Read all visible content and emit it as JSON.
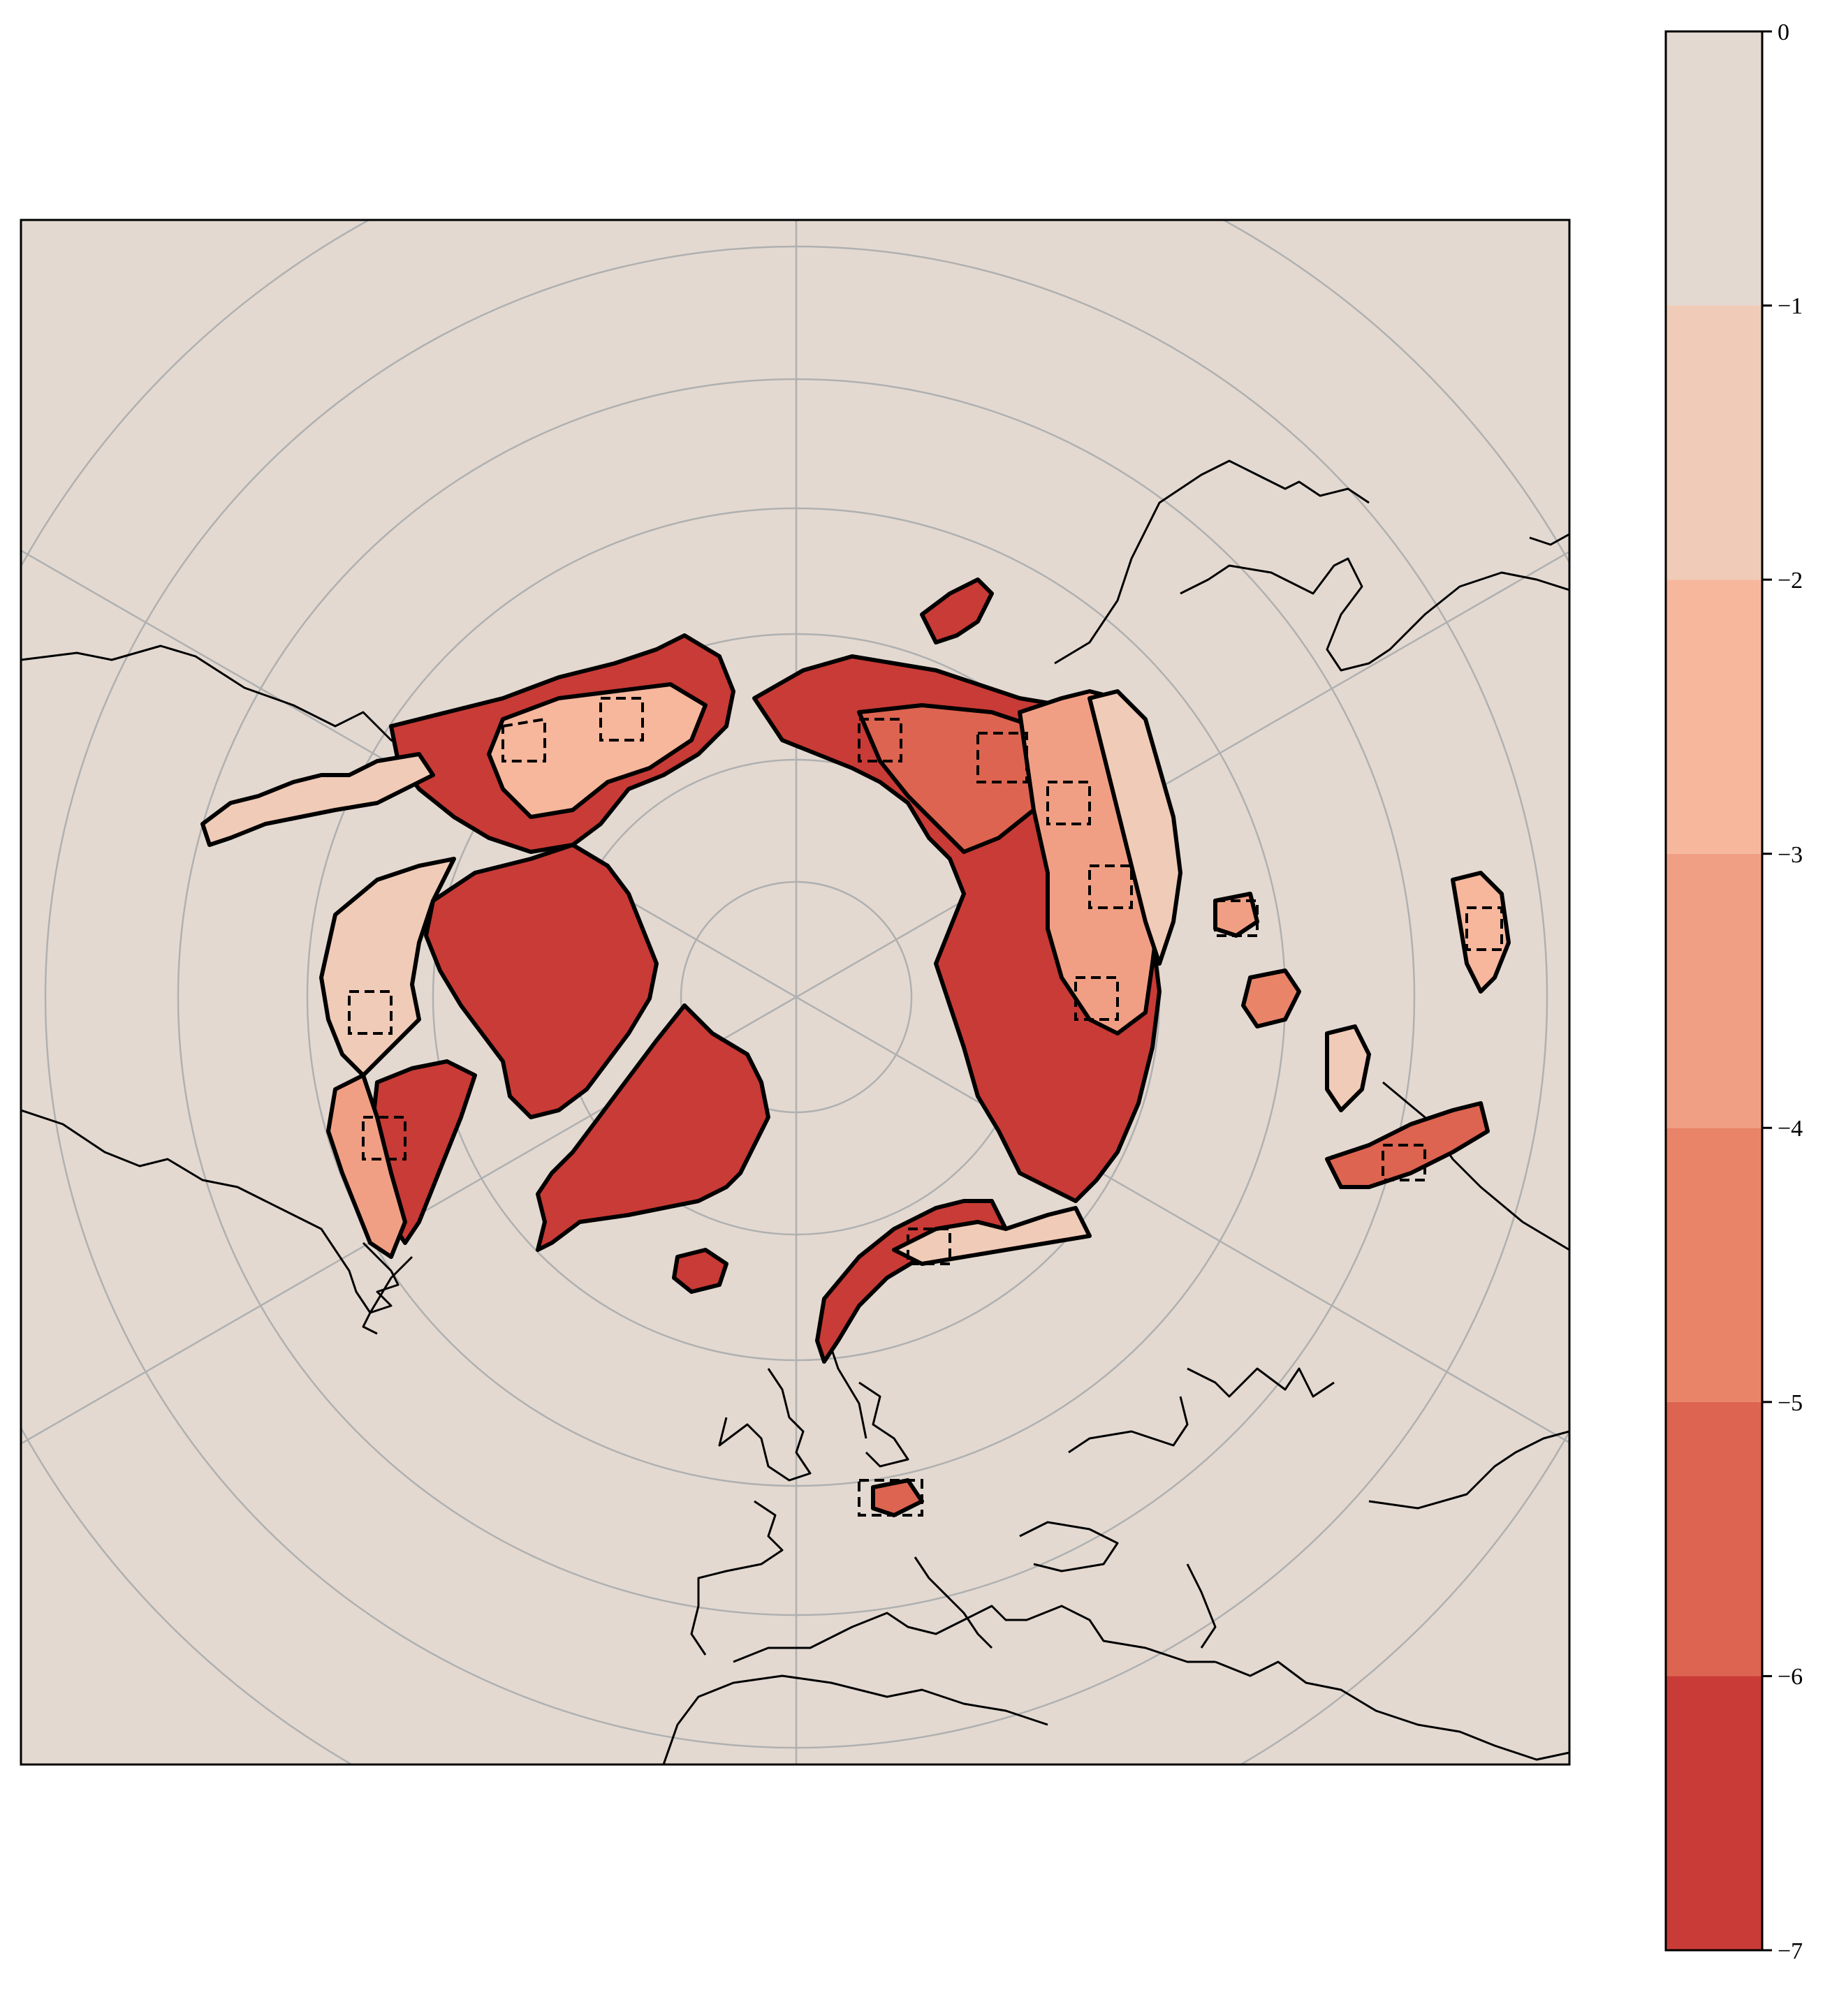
{
  "map": {
    "projection": "north-polar-stereographic",
    "background_color": "#e3d9d1",
    "graticule_color": "#b0b0b0",
    "coastline_color": "#000000",
    "contour_style": "dashed",
    "features": [
      "north-america",
      "greenland",
      "arctic-archipelago",
      "siberia",
      "europe",
      "scandinavia",
      "iceland"
    ]
  },
  "colorbar": {
    "tick_labels": [
      "0",
      "−1",
      "−2",
      "−3",
      "−4",
      "−5",
      "−6",
      "−7"
    ],
    "levels": [
      0,
      -1,
      -2,
      -3,
      -4,
      -5,
      -6,
      -7
    ],
    "colors": [
      "#e3d9d1",
      "#f0cbb7",
      "#f6b79d",
      "#f19f84",
      "#e98469",
      "#dd6450",
      "#c93b36"
    ]
  }
}
